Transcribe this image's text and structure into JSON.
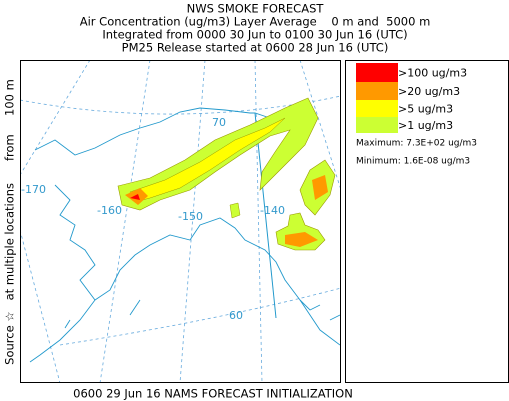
{
  "header": {
    "title": "NWS SMOKE FORECAST",
    "lines": [
      "Air Concentration (ug/m3) Layer Average    0 m and  5000 m",
      "Integrated from 0000 30 Jun to 0100 30 Jun 16 (UTC)",
      "PM25 Release started at 0600 28 Jun 16 (UTC)"
    ]
  },
  "side_label": "Source ☆   at multiple locations      from     100 m",
  "legend": {
    "items": [
      {
        "label": ">100 ug/m3",
        "color": "#ff0000"
      },
      {
        "label": ">20 ug/m3",
        "color": "#ff9900"
      },
      {
        "label": ">5 ug/m3",
        "color": "#ffff00"
      },
      {
        "label": ">1 ug/m3",
        "color": "#ccff33"
      }
    ],
    "maximum": "Maximum: 7.3E+02 ug/m3",
    "minimum": "Minimum: 1.6E-08 ug/m3"
  },
  "map": {
    "labels": [
      "70",
      "60",
      "-170",
      "-160",
      "-150",
      "-140"
    ]
  },
  "footer": "0600 29 Jun 16 NAMS FORECAST INITIALIZATION"
}
